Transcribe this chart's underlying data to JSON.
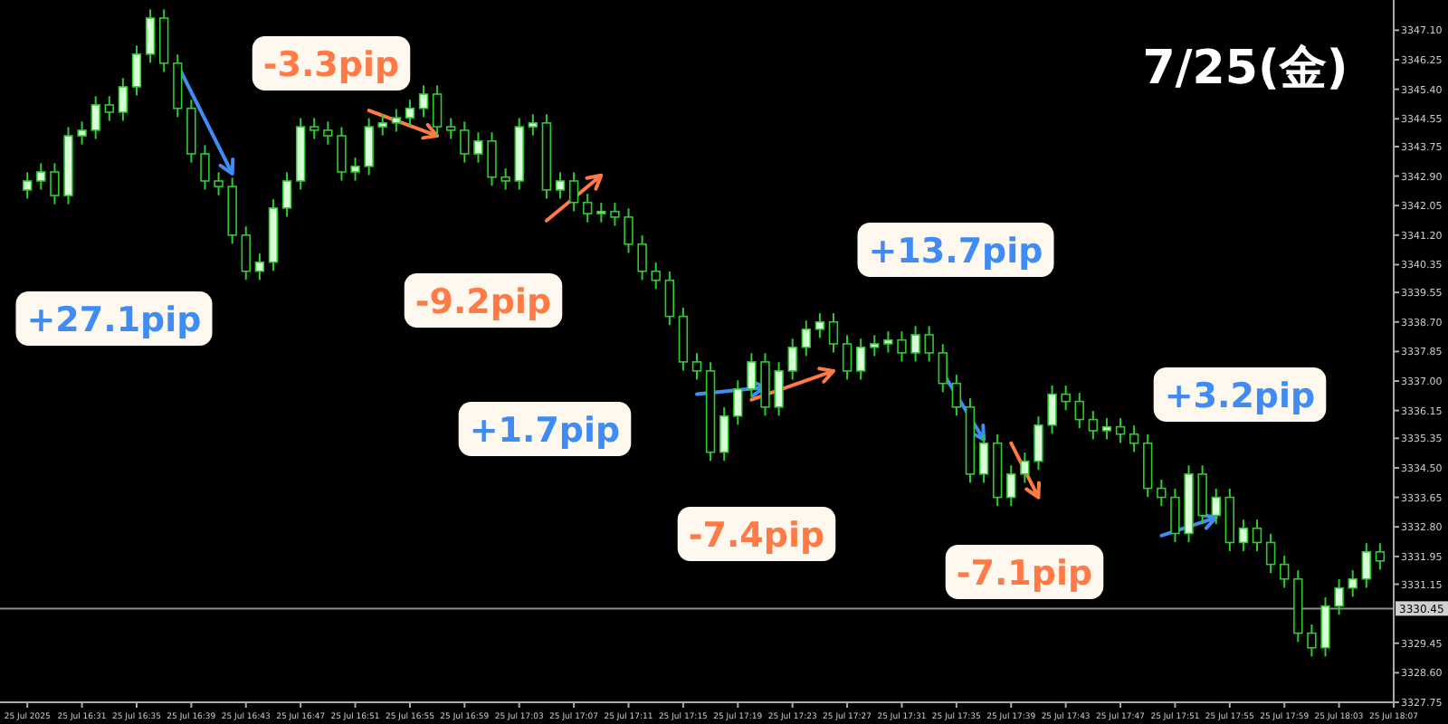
{
  "chart_data": {
    "type": "candlestick",
    "title": "7/25(金)",
    "color": "#2ecc2e",
    "grid": false,
    "xlim": [
      "2025-07-25T16:25",
      "2025-07-25T18:07"
    ],
    "ylim": [
      3327.75,
      3347.97
    ],
    "xticks": [
      {
        "value": "2025-07-25T16:27",
        "label": "25 Jul 2025"
      },
      {
        "value": "2025-07-25T16:31",
        "label": "25 Jul 16:31"
      },
      {
        "value": "2025-07-25T16:35",
        "label": "25 Jul 16:35"
      },
      {
        "value": "2025-07-25T16:39",
        "label": "25 Jul 16:39"
      },
      {
        "value": "2025-07-25T16:43",
        "label": "25 Jul 16:43"
      },
      {
        "value": "2025-07-25T16:47",
        "label": "25 Jul 16:47"
      },
      {
        "value": "2025-07-25T16:51",
        "label": "25 Jul 16:51"
      },
      {
        "value": "2025-07-25T16:55",
        "label": "25 Jul 16:55"
      },
      {
        "value": "2025-07-25T16:59",
        "label": "25 Jul 16:59"
      },
      {
        "value": "2025-07-25T17:03",
        "label": "25 Jul 17:03"
      },
      {
        "value": "2025-07-25T17:07",
        "label": "25 Jul 17:07"
      },
      {
        "value": "2025-07-25T17:11",
        "label": "25 Jul 17:11"
      },
      {
        "value": "2025-07-25T17:15",
        "label": "25 Jul 17:15"
      },
      {
        "value": "2025-07-25T17:19",
        "label": "25 Jul 17:19"
      },
      {
        "value": "2025-07-25T17:23",
        "label": "25 Jul 17:23"
      },
      {
        "value": "2025-07-25T17:27",
        "label": "25 Jul 17:27"
      },
      {
        "value": "2025-07-25T17:31",
        "label": "25 Jul 17:31"
      },
      {
        "value": "2025-07-25T17:35",
        "label": "25 Jul 17:35"
      },
      {
        "value": "2025-07-25T17:39",
        "label": "25 Jul 17:39"
      },
      {
        "value": "2025-07-25T17:43",
        "label": "25 Jul 17:43"
      },
      {
        "value": "2025-07-25T17:47",
        "label": "25 Jul 17:47"
      },
      {
        "value": "2025-07-25T17:51",
        "label": "25 Jul 17:51"
      },
      {
        "value": "2025-07-25T17:55",
        "label": "25 Jul 17:55"
      },
      {
        "value": "2025-07-25T17:59",
        "label": "25 Jul 17:59"
      },
      {
        "value": "2025-07-25T18:03",
        "label": "25 Jul 18:03"
      },
      {
        "value": "2025-07-25T18:07",
        "label": "25 Jul 18:07"
      }
    ],
    "yticks": [
      {
        "value": 3347.1,
        "label": "3347.10"
      },
      {
        "value": 3346.25,
        "label": "3346.25"
      },
      {
        "value": 3345.4,
        "label": "3345.40"
      },
      {
        "value": 3344.55,
        "label": "3344.55"
      },
      {
        "value": 3343.75,
        "label": "3343.75"
      },
      {
        "value": 3342.9,
        "label": "3342.90"
      },
      {
        "value": 3342.05,
        "label": "3342.05"
      },
      {
        "value": 3341.2,
        "label": "3341.20"
      },
      {
        "value": 3340.35,
        "label": "3340.35"
      },
      {
        "value": 3339.55,
        "label": "3339.55"
      },
      {
        "value": 3338.7,
        "label": "3338.70"
      },
      {
        "value": 3337.85,
        "label": "3337.85"
      },
      {
        "value": 3337,
        "label": "3337.00"
      },
      {
        "value": 3336.15,
        "label": "3336.15"
      },
      {
        "value": 3335.35,
        "label": "3335.35"
      },
      {
        "value": 3334.5,
        "label": "3334.50"
      },
      {
        "value": 3333.65,
        "label": "3333.65"
      },
      {
        "value": 3332.8,
        "label": "3332.80"
      },
      {
        "value": 3331.95,
        "label": "3331.95"
      },
      {
        "value": 3331.15,
        "label": "3331.15"
      },
      {
        "value": 3329.45,
        "label": "3329.45"
      },
      {
        "value": 3328.6,
        "label": "3328.60"
      },
      {
        "value": 3327.75,
        "label": "3327.75"
      }
    ],
    "ref_lines": [
      {
        "axis": "y",
        "value": 3330.45,
        "label": "3330.45",
        "color": "#8c8c8c"
      }
    ],
    "x": [
      "2025-07-25T16:27",
      "2025-07-25T16:28",
      "2025-07-25T16:29",
      "2025-07-25T16:30",
      "2025-07-25T16:31",
      "2025-07-25T16:32",
      "2025-07-25T16:33",
      "2025-07-25T16:34",
      "2025-07-25T16:35",
      "2025-07-25T16:36",
      "2025-07-25T16:37",
      "2025-07-25T16:38",
      "2025-07-25T16:39",
      "2025-07-25T16:40",
      "2025-07-25T16:41",
      "2025-07-25T16:42",
      "2025-07-25T16:43",
      "2025-07-25T16:44",
      "2025-07-25T16:45",
      "2025-07-25T16:46",
      "2025-07-25T16:47",
      "2025-07-25T16:48",
      "2025-07-25T16:49",
      "2025-07-25T16:50",
      "2025-07-25T16:51",
      "2025-07-25T16:52",
      "2025-07-25T16:53",
      "2025-07-25T16:54",
      "2025-07-25T16:55",
      "2025-07-25T16:56",
      "2025-07-25T16:57",
      "2025-07-25T16:58",
      "2025-07-25T16:59",
      "2025-07-25T17:00",
      "2025-07-25T17:01",
      "2025-07-25T17:02",
      "2025-07-25T17:03",
      "2025-07-25T17:04",
      "2025-07-25T17:05",
      "2025-07-25T17:06",
      "2025-07-25T17:07",
      "2025-07-25T17:08",
      "2025-07-25T17:09",
      "2025-07-25T17:10",
      "2025-07-25T17:11",
      "2025-07-25T17:12",
      "2025-07-25T17:13",
      "2025-07-25T17:14",
      "2025-07-25T17:15",
      "2025-07-25T17:16",
      "2025-07-25T17:17",
      "2025-07-25T17:18",
      "2025-07-25T17:19",
      "2025-07-25T17:20",
      "2025-07-25T17:21",
      "2025-07-25T17:22",
      "2025-07-25T17:23",
      "2025-07-25T17:24",
      "2025-07-25T17:25",
      "2025-07-25T17:26",
      "2025-07-25T17:27",
      "2025-07-25T17:28",
      "2025-07-25T17:29",
      "2025-07-25T17:30",
      "2025-07-25T17:31",
      "2025-07-25T17:32",
      "2025-07-25T17:33",
      "2025-07-25T17:34",
      "2025-07-25T17:35",
      "2025-07-25T17:36",
      "2025-07-25T17:37",
      "2025-07-25T17:38",
      "2025-07-25T17:39",
      "2025-07-25T17:40",
      "2025-07-25T17:41",
      "2025-07-25T17:42",
      "2025-07-25T17:43",
      "2025-07-25T17:44",
      "2025-07-25T17:45",
      "2025-07-25T17:46",
      "2025-07-25T17:47",
      "2025-07-25T17:48",
      "2025-07-25T17:49",
      "2025-07-25T17:50",
      "2025-07-25T17:51",
      "2025-07-25T17:52",
      "2025-07-25T17:53",
      "2025-07-25T17:54",
      "2025-07-25T17:55",
      "2025-07-25T17:56",
      "2025-07-25T17:57",
      "2025-07-25T17:58",
      "2025-07-25T17:59",
      "2025-07-25T18:00",
      "2025-07-25T18:01",
      "2025-07-25T18:02",
      "2025-07-25T18:03",
      "2025-07-25T18:04",
      "2025-07-25T18:05",
      "2025-07-25T18:06"
    ],
    "ohlc": [
      [
        3342.5,
        3343.01,
        3342.25,
        3342.76
      ],
      [
        3342.76,
        3343.27,
        3342.51,
        3343.02
      ],
      [
        3343.02,
        3343.27,
        3342.09,
        3342.34
      ],
      [
        3342.34,
        3344.31,
        3342.09,
        3344.06
      ],
      [
        3344.06,
        3344.47,
        3343.81,
        3344.22
      ],
      [
        3344.22,
        3345.2,
        3343.97,
        3344.95
      ],
      [
        3344.95,
        3345.2,
        3344.49,
        3344.74
      ],
      [
        3344.74,
        3345.72,
        3344.49,
        3345.47
      ],
      [
        3345.47,
        3346.66,
        3345.22,
        3346.41
      ],
      [
        3346.41,
        3347.7,
        3346.16,
        3347.45
      ],
      [
        3347.45,
        3347.7,
        3345.9,
        3346.15
      ],
      [
        3346.15,
        3346.4,
        3344.6,
        3344.85
      ],
      [
        3344.85,
        3345.1,
        3343.29,
        3343.54
      ],
      [
        3343.54,
        3343.79,
        3342.51,
        3342.76
      ],
      [
        3342.76,
        3343.01,
        3342.35,
        3342.6
      ],
      [
        3342.6,
        3342.85,
        3340.95,
        3341.2
      ],
      [
        3341.2,
        3341.45,
        3339.91,
        3340.16
      ],
      [
        3340.16,
        3340.67,
        3339.91,
        3340.42
      ],
      [
        3340.42,
        3342.23,
        3340.17,
        3341.98
      ],
      [
        3341.98,
        3343.01,
        3341.73,
        3342.76
      ],
      [
        3342.76,
        3344.57,
        3342.51,
        3344.32
      ],
      [
        3344.32,
        3344.57,
        3343.97,
        3344.22
      ],
      [
        3344.22,
        3344.47,
        3343.81,
        3344.06
      ],
      [
        3344.06,
        3344.31,
        3342.77,
        3343.02
      ],
      [
        3343.02,
        3343.43,
        3342.77,
        3343.18
      ],
      [
        3343.18,
        3344.57,
        3342.93,
        3344.32
      ],
      [
        3344.32,
        3344.68,
        3344.07,
        3344.43
      ],
      [
        3344.43,
        3344.83,
        3344.18,
        3344.58
      ],
      [
        3344.58,
        3345.1,
        3344.33,
        3344.85
      ],
      [
        3344.85,
        3345.51,
        3344.6,
        3345.26
      ],
      [
        3345.26,
        3345.51,
        3344.07,
        3344.32
      ],
      [
        3344.32,
        3344.57,
        3343.97,
        3344.22
      ],
      [
        3344.22,
        3344.47,
        3343.29,
        3343.54
      ],
      [
        3343.54,
        3344.16,
        3343.29,
        3343.91
      ],
      [
        3343.91,
        3344.16,
        3342.62,
        3342.87
      ],
      [
        3342.87,
        3343.12,
        3342.51,
        3342.76
      ],
      [
        3342.76,
        3344.57,
        3342.51,
        3344.32
      ],
      [
        3344.32,
        3344.68,
        3344.07,
        3344.43
      ],
      [
        3344.43,
        3344.68,
        3342.25,
        3342.5
      ],
      [
        3342.5,
        3343.01,
        3342.25,
        3342.76
      ],
      [
        3342.76,
        3343.01,
        3341.89,
        3342.14
      ],
      [
        3342.14,
        3342.39,
        3341.57,
        3341.82
      ],
      [
        3341.82,
        3342.13,
        3341.57,
        3341.88
      ],
      [
        3341.88,
        3342.13,
        3341.47,
        3341.72
      ],
      [
        3341.72,
        3341.97,
        3340.69,
        3340.94
      ],
      [
        3340.94,
        3341.19,
        3339.91,
        3340.16
      ],
      [
        3340.16,
        3340.41,
        3339.65,
        3339.9
      ],
      [
        3339.9,
        3340.15,
        3338.61,
        3338.86
      ],
      [
        3338.86,
        3339.11,
        3337.3,
        3337.55
      ],
      [
        3337.55,
        3337.8,
        3337.04,
        3337.29
      ],
      [
        3337.29,
        3337.54,
        3334.7,
        3334.95
      ],
      [
        3334.95,
        3336.24,
        3334.7,
        3335.99
      ],
      [
        3335.99,
        3337.02,
        3335.74,
        3336.77
      ],
      [
        3336.77,
        3337.8,
        3336.52,
        3337.55
      ],
      [
        3337.55,
        3337.8,
        3336.0,
        3336.25
      ],
      [
        3336.25,
        3337.54,
        3336.0,
        3337.29
      ],
      [
        3337.29,
        3338.22,
        3337.04,
        3337.97
      ],
      [
        3337.97,
        3338.74,
        3337.72,
        3338.49
      ],
      [
        3338.49,
        3338.95,
        3338.24,
        3338.7
      ],
      [
        3338.7,
        3338.95,
        3337.82,
        3338.07
      ],
      [
        3338.07,
        3338.32,
        3337.04,
        3337.29
      ],
      [
        3337.29,
        3338.22,
        3337.04,
        3337.97
      ],
      [
        3337.97,
        3338.32,
        3337.72,
        3338.07
      ],
      [
        3338.07,
        3338.43,
        3337.82,
        3338.18
      ],
      [
        3338.18,
        3338.43,
        3337.56,
        3337.81
      ],
      [
        3337.81,
        3338.58,
        3337.56,
        3338.33
      ],
      [
        3338.33,
        3338.58,
        3337.56,
        3337.81
      ],
      [
        3337.81,
        3338.06,
        3336.68,
        3336.93
      ],
      [
        3336.93,
        3337.18,
        3336.0,
        3336.25
      ],
      [
        3336.25,
        3336.5,
        3334.07,
        3334.32
      ],
      [
        3334.32,
        3335.46,
        3334.07,
        3335.21
      ],
      [
        3335.21,
        3335.46,
        3333.4,
        3333.65
      ],
      [
        3333.65,
        3334.57,
        3333.4,
        3334.32
      ],
      [
        3334.32,
        3334.94,
        3334.07,
        3334.69
      ],
      [
        3334.69,
        3335.98,
        3334.44,
        3335.73
      ],
      [
        3335.73,
        3336.87,
        3335.48,
        3336.62
      ],
      [
        3336.62,
        3336.87,
        3336.16,
        3336.41
      ],
      [
        3336.41,
        3336.66,
        3335.64,
        3335.89
      ],
      [
        3335.89,
        3336.14,
        3335.32,
        3335.57
      ],
      [
        3335.57,
        3335.93,
        3335.32,
        3335.68
      ],
      [
        3335.68,
        3335.93,
        3335.22,
        3335.47
      ],
      [
        3335.47,
        3335.72,
        3334.96,
        3335.21
      ],
      [
        3335.21,
        3335.46,
        3333.66,
        3333.91
      ],
      [
        3333.91,
        3334.16,
        3333.4,
        3333.65
      ],
      [
        3333.65,
        3333.9,
        3332.36,
        3332.61
      ],
      [
        3332.61,
        3334.57,
        3332.36,
        3334.32
      ],
      [
        3334.32,
        3334.57,
        3332.88,
        3333.13
      ],
      [
        3333.13,
        3333.9,
        3332.88,
        3333.65
      ],
      [
        3333.65,
        3333.9,
        3332.1,
        3332.35
      ],
      [
        3332.35,
        3333.01,
        3332.1,
        3332.76
      ],
      [
        3332.76,
        3333.01,
        3332.1,
        3332.35
      ],
      [
        3332.35,
        3332.6,
        3331.47,
        3331.72
      ],
      [
        3331.72,
        3331.97,
        3331.05,
        3331.3
      ],
      [
        3331.3,
        3331.55,
        3329.49,
        3329.74
      ],
      [
        3329.74,
        3329.99,
        3329.07,
        3329.32
      ],
      [
        3329.32,
        3330.77,
        3329.07,
        3330.52
      ],
      [
        3330.52,
        3331.29,
        3330.27,
        3331.04
      ],
      [
        3331.04,
        3331.55,
        3330.79,
        3331.3
      ],
      [
        3331.3,
        3332.33,
        3331.05,
        3332.08
      ],
      [
        3332.08,
        3332.33,
        3331.57,
        3331.82
      ]
    ],
    "series": [
      {
        "type": "line",
        "color": "#3f8cf5",
        "x": [
          "2025-07-25T16:38",
          "2025-07-25T16:42"
        ],
        "values": [
          3346.1,
          3342.97
        ]
      },
      {
        "type": "line",
        "color": "#ff7a45",
        "x": [
          "2025-07-25T16:52",
          "2025-07-25T16:57"
        ],
        "values": [
          3344.79,
          3344.06
        ]
      },
      {
        "type": "line",
        "color": "#ff7a45",
        "x": [
          "2025-07-25T17:05",
          "2025-07-25T17:09"
        ],
        "values": [
          3341.62,
          3342.92
        ]
      },
      {
        "type": "line",
        "color": "#3f8cf5",
        "x": [
          "2025-07-25T17:16",
          "2025-07-25T17:21"
        ],
        "values": [
          3336.62,
          3336.82
        ]
      },
      {
        "type": "line",
        "color": "#ff7a45",
        "x": [
          "2025-07-25T17:20",
          "2025-07-25T17:26"
        ],
        "values": [
          3336.46,
          3337.29
        ]
      },
      {
        "type": "line",
        "color": "#3f8cf5",
        "x": [
          "2025-07-25T17:34",
          "2025-07-25T17:37"
        ],
        "values": [
          3337.24,
          3335.31
        ]
      },
      {
        "type": "line",
        "color": "#ff7a45",
        "x": [
          "2025-07-25T17:39",
          "2025-07-25T17:41"
        ],
        "values": [
          3335.21,
          3333.65
        ]
      },
      {
        "type": "line",
        "color": "#3f8cf5",
        "x": [
          "2025-07-25T17:50",
          "2025-07-25T17:54"
        ],
        "values": [
          3332.55,
          3333.07
        ]
      }
    ],
    "annotations": [
      "+27.1pip",
      "-3.3pip",
      "-9.2pip",
      "+1.7pip",
      "-7.4pip",
      "+13.7pip",
      "-7.1pip",
      "+3.2pip"
    ]
  }
}
